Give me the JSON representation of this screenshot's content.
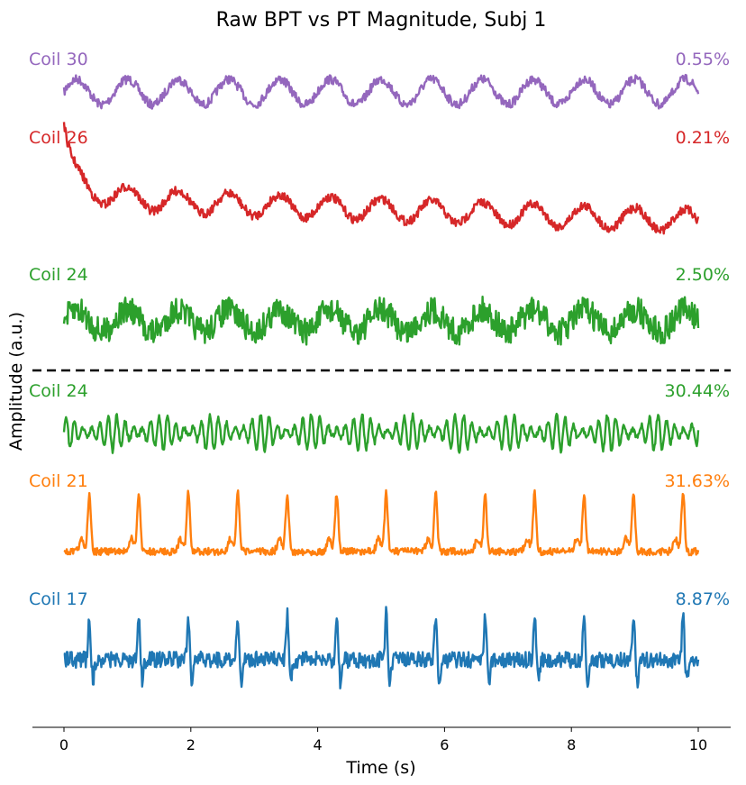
{
  "chart_data": {
    "type": "line",
    "title": "Raw BPT vs PT Magnitude, Subj 1",
    "xlabel": "Time (s)",
    "ylabel": "Amplitude (a.u.)",
    "xlim": [
      -0.5,
      10.5
    ],
    "xticks": [
      0,
      2,
      4,
      6,
      8,
      10
    ],
    "grid": false,
    "legend": "none",
    "separator": "dashed line between raw BPT traces (top) and PT magnitude traces (bottom)",
    "series": [
      {
        "name": "Coil 30",
        "annotation": "0.55%",
        "color": "#9467bd",
        "group": "BPT",
        "pattern": "respiratory",
        "period": 0.8,
        "start": 0.0
      },
      {
        "name": "Coil 26",
        "annotation": "0.21%",
        "color": "#d62728",
        "group": "BPT",
        "pattern": "respiratory-decay",
        "period": 0.8,
        "start": 0.0
      },
      {
        "name": "Coil 24",
        "annotation": "2.50%",
        "color": "#2ca02c",
        "group": "BPT",
        "pattern": "noisy-respiratory",
        "period": 0.8,
        "start": 0.0
      },
      {
        "name": "Coil 24",
        "annotation": "30.44%",
        "color": "#2ca02c",
        "group": "PT",
        "pattern": "cardiac-oscillation",
        "period": 0.78,
        "start": 0.0
      },
      {
        "name": "Coil 21",
        "annotation": "31.63%",
        "color": "#ff7f0e",
        "group": "PT",
        "pattern": "cardiac-peaks",
        "period": 0.78,
        "start": 0.4
      },
      {
        "name": "Coil 17",
        "annotation": "8.87%",
        "color": "#1f77b4",
        "group": "PT",
        "pattern": "cardiac-spikes",
        "period": 0.78,
        "start": 0.4
      }
    ]
  }
}
